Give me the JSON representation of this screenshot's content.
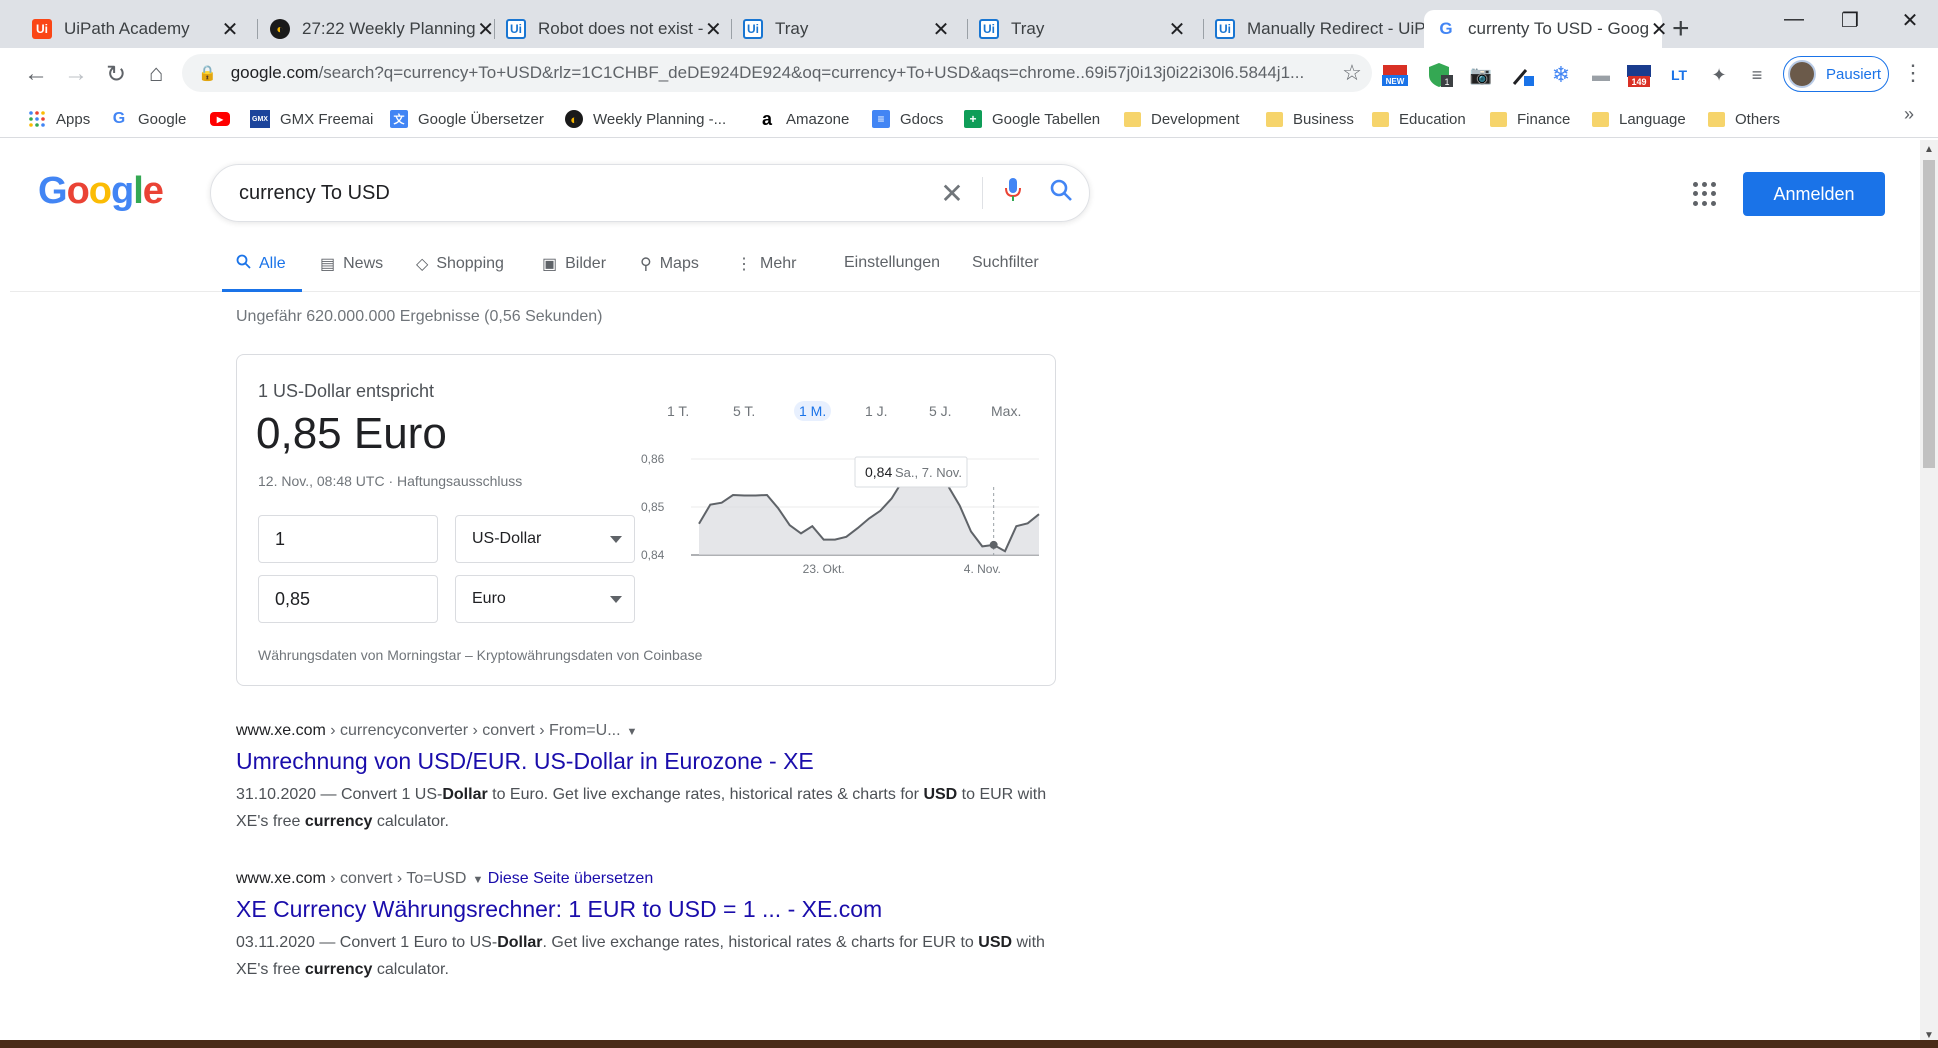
{
  "browser": {
    "tabs": [
      {
        "label": "UiPath Academy",
        "icon": "uipath-icon",
        "active": false
      },
      {
        "label": "27:22 Weekly Planning",
        "icon": "planner-icon",
        "active": false
      },
      {
        "label": "Robot does not exist - ",
        "icon": "uipath-icon",
        "active": false
      },
      {
        "label": "Tray",
        "icon": "uipath-icon",
        "active": false
      },
      {
        "label": "Tray",
        "icon": "uipath-icon",
        "active": false
      },
      {
        "label": "Manually Redirect - UiP",
        "icon": "uipath-icon",
        "active": false
      },
      {
        "label": "currenty To USD - Goog",
        "icon": "google-icon",
        "active": true
      }
    ],
    "url_host": "google.com",
    "url_rest": "/search?q=currency+To+USD&rlz=1C1CHBF_deDE924DE924&oq=currency+To+USD&aqs=chrome..69i57j0i13j0i22i30l6.5844j1...",
    "profile_label": "Pausiert",
    "ext_badge_new": "NEW",
    "ext_badge_1": "1",
    "ext_badge_149": "149",
    "bookmarks": [
      "Apps",
      "Google",
      "GMX Freemai",
      "Google Übersetzer",
      "Weekly Planning -...",
      "Amazone",
      "Gdocs",
      "Google Tabellen",
      "Development",
      "Business",
      "Education",
      "Finance",
      "Language",
      "Others"
    ],
    "bookmarks_more": "»"
  },
  "google": {
    "logo": [
      "G",
      "o",
      "o",
      "g",
      "l",
      "e"
    ],
    "query": "currency To USD",
    "signin": "Anmelden",
    "tabs": [
      {
        "label": "Alle",
        "icon": "search-icon"
      },
      {
        "label": "News",
        "icon": "news-icon"
      },
      {
        "label": "Shopping",
        "icon": "tag-icon"
      },
      {
        "label": "Bilder",
        "icon": "image-icon"
      },
      {
        "label": "Maps",
        "icon": "pin-icon"
      },
      {
        "label": "Mehr",
        "icon": "more-icon"
      },
      {
        "label": "Einstellungen",
        "icon": ""
      },
      {
        "label": "Suchfilter",
        "icon": ""
      }
    ],
    "stats": "Ungefähr 620.000.000 Ergebnisse (0,56 Sekunden)"
  },
  "converter": {
    "equivalent_label": "1 US-Dollar entspricht",
    "value": "0,85 Euro",
    "timestamp": "12. Nov., 08:48 UTC · Haftungsausschluss",
    "from_amount": "1",
    "from_currency": "US-Dollar",
    "to_amount": "0,85",
    "to_currency": "Euro",
    "ranges": [
      "1 T.",
      "5 T.",
      "1 M.",
      "1 J.",
      "5 J.",
      "Max."
    ],
    "active_range": "1 M.",
    "source": "Währungsdaten von Morningstar – Kryptowährungsdaten von Coinbase",
    "tooltip_value": "0,84",
    "tooltip_date": "Sa., 7. Nov."
  },
  "chart_data": {
    "type": "area",
    "yticks": [
      "0,86",
      "0,85",
      "0,84"
    ],
    "ylim": [
      0.84,
      0.86
    ],
    "xticks": [
      "23. Okt.",
      "4. Nov."
    ],
    "values": [
      0.8465,
      0.8505,
      0.8509,
      0.8525,
      0.8524,
      0.8524,
      0.8525,
      0.8497,
      0.8462,
      0.8445,
      0.846,
      0.8432,
      0.8432,
      0.8438,
      0.8456,
      0.8476,
      0.8492,
      0.8518,
      0.8556,
      0.8556,
      0.8568,
      0.8558,
      0.8543,
      0.8503,
      0.8449,
      0.8418,
      0.8421,
      0.8408,
      0.846,
      0.8466,
      0.8485
    ],
    "line_color": "#5f6368",
    "fill_color": "#dadce0",
    "highlight_index": 26
  },
  "results": [
    {
      "site": "www.xe.com",
      "path": " › currencyconverter › convert › From=U...",
      "translate": "",
      "title": "Umrechnung von USD/EUR. US-Dollar in Eurozone - XE",
      "date": "31.10.2020",
      "s1": " — Convert 1 US-",
      "b1": "Dollar",
      "s2": " to Euro. Get live exchange rates, historical rates & charts for ",
      "b2": "USD",
      "s3": " to EUR with XE's free ",
      "b3": "currency",
      "s4": " calculator."
    },
    {
      "site": "www.xe.com",
      "path": " › convert › To=USD",
      "translate": "Diese Seite übersetzen",
      "title": "XE Currency Währungsrechner: 1 EUR to USD = 1 ... - XE.com",
      "date": "03.11.2020",
      "s1": " — Convert 1 Euro to US-",
      "b1": "Dollar",
      "s2": ". Get live exchange rates, historical rates & charts for EUR to ",
      "b2": "USD",
      "s3": " with XE's free ",
      "b3": "currency",
      "s4": " calculator."
    }
  ],
  "colors": {
    "accent": "#1a73e8",
    "link": "#1a0dab",
    "google_blue": "#4285f4",
    "google_red": "#ea4335",
    "google_yellow": "#fbbc05",
    "google_green": "#34a853"
  }
}
